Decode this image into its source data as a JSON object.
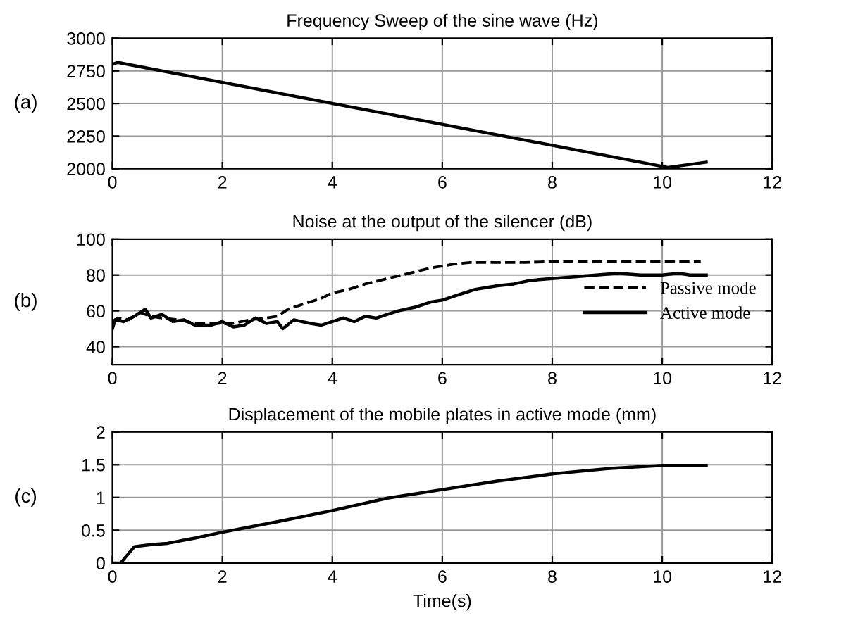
{
  "chart_data": [
    {
      "type": "line",
      "title": "Frequency Sweep of the sine wave (Hz)",
      "annotations": [
        "(a)"
      ],
      "xlim": [
        0,
        12
      ],
      "xticks": [
        0,
        2,
        4,
        6,
        8,
        10,
        12
      ],
      "ylim": [
        2000,
        3000
      ],
      "yticks": [
        2000,
        2250,
        2500,
        2750,
        3000
      ],
      "grid": true,
      "legend": false,
      "series": [
        {
          "color": "#000000",
          "line_style": "solid",
          "x": [
            0,
            0.1,
            10.1,
            10.8
          ],
          "values": [
            2800,
            2815,
            2010,
            2050
          ]
        }
      ]
    },
    {
      "type": "line",
      "title": "Noise at the output of the silencer (dB)",
      "annotations": [
        "(b)"
      ],
      "xlim": [
        0,
        12
      ],
      "xticks": [
        0,
        2,
        4,
        6,
        8,
        10,
        12
      ],
      "ylim": [
        30,
        100
      ],
      "yticks": [
        40,
        60,
        80,
        100
      ],
      "grid": true,
      "legend": "right",
      "series": [
        {
          "name": "Passive mode",
          "color": "#000000",
          "line_style": "dashed",
          "x": [
            0,
            0.1,
            0.3,
            0.5,
            0.7,
            0.9,
            1.2,
            1.5,
            1.8,
            2.2,
            2.5,
            2.8,
            3.0,
            3.2,
            3.5,
            3.8,
            4.0,
            4.3,
            4.6,
            5.0,
            5.4,
            5.8,
            6.2,
            6.5,
            7.0,
            7.5,
            8.0,
            9.0,
            10.0,
            10.7
          ],
          "values": [
            54,
            56,
            55,
            59,
            57,
            56,
            55,
            53,
            53,
            53,
            55,
            56,
            57,
            61,
            64,
            67,
            70,
            72,
            75,
            78,
            81,
            84,
            86,
            87,
            87,
            87,
            87.5,
            87.5,
            87.5,
            87.5
          ]
        },
        {
          "name": "Active mode",
          "color": "#000000",
          "line_style": "solid",
          "x": [
            0,
            0.05,
            0.2,
            0.4,
            0.6,
            0.7,
            0.9,
            1.1,
            1.3,
            1.5,
            1.8,
            2.0,
            2.2,
            2.4,
            2.6,
            2.8,
            3.0,
            3.1,
            3.3,
            3.6,
            3.8,
            4.0,
            4.2,
            4.4,
            4.6,
            4.8,
            5.0,
            5.2,
            5.5,
            5.8,
            6.0,
            6.3,
            6.6,
            7.0,
            7.3,
            7.6,
            8.0,
            8.4,
            8.8,
            9.2,
            9.6,
            10.0,
            10.3,
            10.5,
            10.8
          ],
          "values": [
            50,
            55,
            54,
            57,
            61,
            56,
            58,
            54,
            55,
            52,
            52,
            54,
            51,
            52,
            56,
            53,
            54,
            50,
            55,
            53,
            52,
            54,
            56,
            54,
            57,
            56,
            58,
            60,
            62,
            65,
            66,
            69,
            72,
            74,
            75,
            77,
            78,
            79,
            80,
            81,
            80,
            80,
            81,
            80,
            80
          ]
        }
      ]
    },
    {
      "type": "line",
      "title": "Displacement of the mobile plates in active mode (mm)",
      "annotations": [
        "(c)"
      ],
      "xlabel": "Time(s)",
      "xlim": [
        0,
        12
      ],
      "xticks": [
        0,
        2,
        4,
        6,
        8,
        10,
        12
      ],
      "ylim": [
        0,
        2
      ],
      "yticks": [
        0,
        0.5,
        1,
        1.5,
        2
      ],
      "grid": true,
      "legend": false,
      "series": [
        {
          "color": "#000000",
          "line_style": "solid",
          "x": [
            0,
            0.15,
            0.3,
            0.4,
            0.7,
            1,
            1.5,
            2,
            3,
            4,
            5,
            6,
            7,
            8,
            9,
            10,
            10.8
          ],
          "values": [
            0,
            0,
            0.15,
            0.25,
            0.28,
            0.3,
            0.38,
            0.47,
            0.63,
            0.8,
            0.99,
            1.12,
            1.25,
            1.36,
            1.44,
            1.49,
            1.49
          ]
        }
      ]
    }
  ]
}
